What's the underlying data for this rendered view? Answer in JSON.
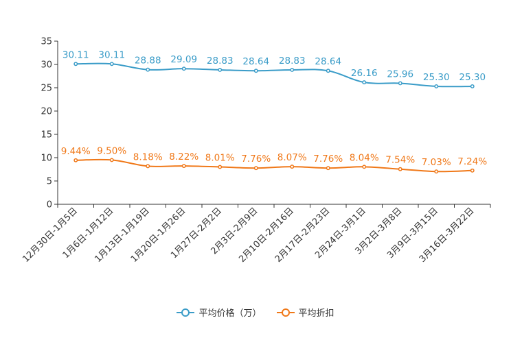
{
  "chart_data": {
    "type": "line",
    "title": "",
    "xlabel": "",
    "ylabel": "",
    "ylim": [
      0,
      35
    ],
    "yticks": [
      0,
      5,
      10,
      15,
      20,
      25,
      30,
      35
    ],
    "categories": [
      "12月30日-1月5日",
      "1月6日-1月12日",
      "1月13日-1月19日",
      "1月20日-1月26日",
      "1月27日-2月2日",
      "2月3日-2月9日",
      "2月10日-2月16日",
      "2月17日-2月23日",
      "2月24日-3月1日",
      "3月2日-3月8日",
      "3月9日-3月15日",
      "3月16日-3月22日"
    ],
    "series": [
      {
        "name": "平均价格（万）",
        "color": "#3a9cc8",
        "values": [
          30.11,
          30.11,
          28.88,
          29.09,
          28.83,
          28.64,
          28.83,
          28.64,
          26.16,
          25.96,
          25.3,
          25.3
        ],
        "labels": [
          "30.11",
          "30.11",
          "28.88",
          "29.09",
          "28.83",
          "28.64",
          "28.83",
          "28.64",
          "26.16",
          "25.96",
          "25.30",
          "25.30"
        ]
      },
      {
        "name": "平均折扣",
        "color": "#f07818",
        "values": [
          9.44,
          9.5,
          8.18,
          8.22,
          8.01,
          7.76,
          8.07,
          7.76,
          8.04,
          7.54,
          7.03,
          7.24
        ],
        "labels": [
          "9.44%",
          "9.50%",
          "8.18%",
          "8.22%",
          "8.01%",
          "7.76%",
          "8.07%",
          "7.76%",
          "8.04%",
          "7.54%",
          "7.03%",
          "7.24%"
        ]
      }
    ],
    "legend": "bottom-center"
  }
}
